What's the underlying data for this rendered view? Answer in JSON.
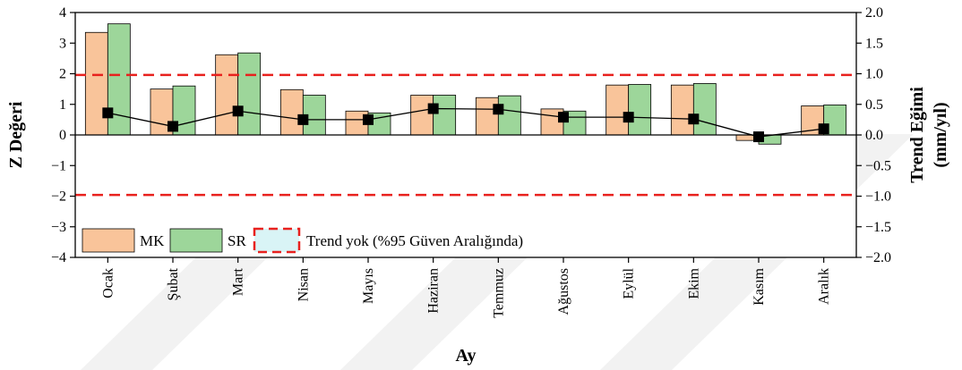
{
  "chart_data": {
    "type": "bar",
    "categories": [
      "Ocak",
      "Şubat",
      "Mart",
      "Nisan",
      "Mayıs",
      "Haziran",
      "Temmuz",
      "Ağustos",
      "Eylül",
      "Ekim",
      "Kasım",
      "Aralık"
    ],
    "series": [
      {
        "name": "MK",
        "values": [
          3.35,
          1.5,
          2.62,
          1.48,
          0.78,
          1.3,
          1.22,
          0.85,
          1.63,
          1.63,
          -0.18,
          0.95
        ],
        "color": "#f9c49a"
      },
      {
        "name": "SR",
        "values": [
          3.63,
          1.6,
          2.68,
          1.3,
          0.72,
          1.3,
          1.28,
          0.78,
          1.65,
          1.68,
          -0.3,
          0.98
        ],
        "color": "#9dd69a"
      }
    ],
    "line_series": {
      "values": [
        0.36,
        0.14,
        0.39,
        0.25,
        0.25,
        0.43,
        0.42,
        0.29,
        0.29,
        0.26,
        -0.03,
        0.1
      ],
      "color": "#000000",
      "axis": "right"
    },
    "reference_lines": {
      "values": [
        1.96,
        -1.96
      ],
      "color": "#e8211e",
      "style": "dashed",
      "label": "Trend yok (%95 Güven Aralığında)"
    },
    "xlabel": "Ay",
    "ylabel": "Z Değeri",
    "ylabel_right": [
      "Trend Eğimi",
      "(mm/yıl)"
    ],
    "ylim": [
      -4,
      4
    ],
    "ylim_right": [
      -2.0,
      2.0
    ],
    "yticks": [
      "−4",
      "−3",
      "−2",
      "−1",
      "0",
      "1",
      "2",
      "3",
      "4"
    ],
    "yticks_right": [
      "−2.0",
      "−1.5",
      "−1.0",
      "−0.5",
      "0.0",
      "0.5",
      "1.0",
      "1.5",
      "2.0"
    ],
    "legend_position": "bottom-left",
    "grid": false,
    "zero_line": true
  }
}
